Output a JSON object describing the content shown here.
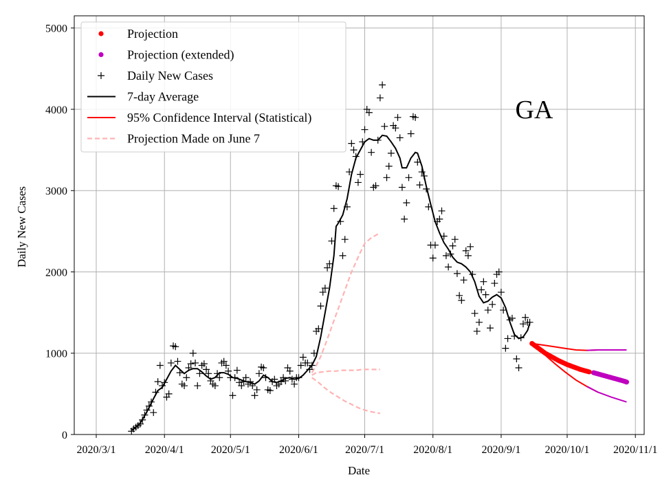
{
  "chart_data": {
    "type": "line",
    "title": "",
    "annotation": "GA",
    "xlabel": "Date",
    "ylabel": "Daily New Cases",
    "xlim_days": [
      -10,
      249
    ],
    "ylim": [
      0,
      5150
    ],
    "grid": true,
    "legend_position": "top-left",
    "x_ticks": [
      {
        "day": 0,
        "label": "2020/3/1"
      },
      {
        "day": 31,
        "label": "2020/4/1"
      },
      {
        "day": 61,
        "label": "2020/5/1"
      },
      {
        "day": 92,
        "label": "2020/6/1"
      },
      {
        "day": 122,
        "label": "2020/7/1"
      },
      {
        "day": 153,
        "label": "2020/8/1"
      },
      {
        "day": 184,
        "label": "2020/9/1"
      },
      {
        "day": 214,
        "label": "2020/10/1"
      },
      {
        "day": 245,
        "label": "2020/11/1"
      }
    ],
    "y_ticks": [
      0,
      1000,
      2000,
      3000,
      4000,
      5000
    ],
    "legend": [
      {
        "label": "Projection",
        "kind": "dot",
        "color": "#ff0000"
      },
      {
        "label": "Projection (extended)",
        "kind": "dot",
        "color": "#bf00bf"
      },
      {
        "label": "Daily New Cases",
        "kind": "plus",
        "color": "#000000"
      },
      {
        "label": "7-day Average",
        "kind": "line",
        "color": "#000000"
      },
      {
        "label": "95% Confidence Interval (Statistical)",
        "kind": "line",
        "color": "#ff0000"
      },
      {
        "label": "Projection Made on June 7",
        "kind": "dashed",
        "color": "#ffb3b3"
      }
    ],
    "daily_cases": [
      [
        16,
        40
      ],
      [
        17,
        70
      ],
      [
        18,
        90
      ],
      [
        19,
        110
      ],
      [
        20,
        130
      ],
      [
        21,
        180
      ],
      [
        22,
        240
      ],
      [
        23,
        300
      ],
      [
        24,
        350
      ],
      [
        25,
        400
      ],
      [
        26,
        270
      ],
      [
        27,
        520
      ],
      [
        28,
        650
      ],
      [
        29,
        850
      ],
      [
        30,
        600
      ],
      [
        31,
        640
      ],
      [
        32,
        460
      ],
      [
        33,
        500
      ],
      [
        34,
        880
      ],
      [
        35,
        1090
      ],
      [
        36,
        1080
      ],
      [
        37,
        900
      ],
      [
        38,
        760
      ],
      [
        39,
        620
      ],
      [
        40,
        600
      ],
      [
        41,
        700
      ],
      [
        42,
        820
      ],
      [
        43,
        870
      ],
      [
        44,
        1000
      ],
      [
        45,
        880
      ],
      [
        46,
        600
      ],
      [
        47,
        750
      ],
      [
        48,
        850
      ],
      [
        49,
        870
      ],
      [
        50,
        800
      ],
      [
        51,
        750
      ],
      [
        52,
        660
      ],
      [
        53,
        620
      ],
      [
        54,
        600
      ],
      [
        55,
        750
      ],
      [
        56,
        700
      ],
      [
        57,
        880
      ],
      [
        58,
        900
      ],
      [
        59,
        850
      ],
      [
        60,
        780
      ],
      [
        61,
        700
      ],
      [
        62,
        480
      ],
      [
        63,
        700
      ],
      [
        64,
        790
      ],
      [
        65,
        640
      ],
      [
        66,
        600
      ],
      [
        67,
        650
      ],
      [
        68,
        700
      ],
      [
        69,
        620
      ],
      [
        70,
        650
      ],
      [
        71,
        600
      ],
      [
        72,
        480
      ],
      [
        73,
        550
      ],
      [
        74,
        750
      ],
      [
        75,
        830
      ],
      [
        76,
        820
      ],
      [
        77,
        700
      ],
      [
        78,
        550
      ],
      [
        79,
        540
      ],
      [
        80,
        650
      ],
      [
        81,
        680
      ],
      [
        82,
        600
      ],
      [
        83,
        620
      ],
      [
        84,
        650
      ],
      [
        85,
        700
      ],
      [
        86,
        660
      ],
      [
        87,
        820
      ],
      [
        88,
        780
      ],
      [
        89,
        680
      ],
      [
        90,
        620
      ],
      [
        91,
        700
      ],
      [
        92,
        700
      ],
      [
        93,
        850
      ],
      [
        94,
        950
      ],
      [
        95,
        880
      ],
      [
        96,
        880
      ],
      [
        97,
        800
      ],
      [
        98,
        850
      ],
      [
        99,
        1000
      ],
      [
        100,
        1270
      ],
      [
        101,
        1300
      ],
      [
        102,
        1580
      ],
      [
        103,
        1750
      ],
      [
        104,
        1800
      ],
      [
        105,
        2050
      ],
      [
        106,
        2100
      ],
      [
        107,
        2380
      ],
      [
        108,
        2780
      ],
      [
        109,
        3060
      ],
      [
        110,
        3050
      ],
      [
        111,
        2620
      ],
      [
        112,
        2200
      ],
      [
        113,
        2400
      ],
      [
        114,
        2800
      ],
      [
        115,
        3230
      ],
      [
        116,
        3580
      ],
      [
        117,
        3500
      ],
      [
        118,
        3420
      ],
      [
        119,
        3100
      ],
      [
        120,
        3200
      ],
      [
        121,
        3600
      ],
      [
        122,
        3750
      ],
      [
        123,
        4000
      ],
      [
        124,
        3960
      ],
      [
        125,
        3470
      ],
      [
        126,
        3040
      ],
      [
        127,
        3060
      ],
      [
        128,
        3620
      ],
      [
        129,
        4140
      ],
      [
        130,
        4300
      ],
      [
        131,
        3790
      ],
      [
        132,
        3160
      ],
      [
        133,
        3300
      ],
      [
        134,
        3460
      ],
      [
        135,
        3800
      ],
      [
        136,
        3770
      ],
      [
        137,
        3900
      ],
      [
        138,
        3650
      ],
      [
        139,
        3040
      ],
      [
        140,
        2650
      ],
      [
        141,
        2850
      ],
      [
        142,
        3160
      ],
      [
        143,
        3700
      ],
      [
        144,
        3910
      ],
      [
        145,
        3900
      ],
      [
        146,
        3350
      ],
      [
        147,
        3070
      ],
      [
        148,
        3230
      ],
      [
        149,
        3180
      ],
      [
        150,
        3020
      ],
      [
        151,
        2800
      ],
      [
        152,
        2330
      ],
      [
        153,
        2170
      ],
      [
        154,
        2330
      ],
      [
        155,
        2620
      ],
      [
        156,
        2650
      ],
      [
        157,
        2750
      ],
      [
        158,
        2440
      ],
      [
        159,
        2200
      ],
      [
        160,
        2060
      ],
      [
        161,
        2220
      ],
      [
        162,
        2320
      ],
      [
        163,
        2400
      ],
      [
        164,
        1980
      ],
      [
        165,
        1710
      ],
      [
        166,
        1650
      ],
      [
        167,
        1900
      ],
      [
        168,
        2260
      ],
      [
        169,
        2200
      ],
      [
        170,
        2310
      ],
      [
        171,
        1970
      ],
      [
        172,
        1490
      ],
      [
        173,
        1270
      ],
      [
        174,
        1380
      ],
      [
        175,
        1780
      ],
      [
        176,
        1880
      ],
      [
        177,
        1720
      ],
      [
        178,
        1530
      ],
      [
        179,
        1310
      ],
      [
        180,
        1600
      ],
      [
        181,
        1860
      ],
      [
        182,
        1970
      ],
      [
        183,
        2000
      ],
      [
        184,
        1750
      ],
      [
        185,
        1530
      ],
      [
        186,
        1060
      ],
      [
        187,
        1180
      ],
      [
        188,
        1410
      ],
      [
        189,
        1430
      ],
      [
        190,
        1210
      ],
      [
        191,
        930
      ],
      [
        192,
        820
      ],
      [
        193,
        1190
      ],
      [
        194,
        1360
      ],
      [
        195,
        1440
      ],
      [
        196,
        1380
      ],
      [
        197,
        1380
      ]
    ],
    "seven_day_average": [
      [
        16,
        50
      ],
      [
        18,
        90
      ],
      [
        20,
        140
      ],
      [
        22,
        230
      ],
      [
        24,
        330
      ],
      [
        26,
        440
      ],
      [
        28,
        540
      ],
      [
        30,
        580
      ],
      [
        32,
        680
      ],
      [
        34,
        780
      ],
      [
        36,
        850
      ],
      [
        38,
        800
      ],
      [
        40,
        750
      ],
      [
        42,
        790
      ],
      [
        44,
        810
      ],
      [
        46,
        810
      ],
      [
        48,
        770
      ],
      [
        50,
        720
      ],
      [
        52,
        680
      ],
      [
        54,
        700
      ],
      [
        56,
        760
      ],
      [
        58,
        760
      ],
      [
        60,
        740
      ],
      [
        62,
        700
      ],
      [
        64,
        690
      ],
      [
        66,
        670
      ],
      [
        68,
        650
      ],
      [
        70,
        640
      ],
      [
        72,
        620
      ],
      [
        74,
        660
      ],
      [
        76,
        730
      ],
      [
        78,
        700
      ],
      [
        80,
        650
      ],
      [
        82,
        640
      ],
      [
        84,
        660
      ],
      [
        86,
        690
      ],
      [
        88,
        700
      ],
      [
        90,
        680
      ],
      [
        92,
        690
      ],
      [
        94,
        730
      ],
      [
        96,
        790
      ],
      [
        98,
        850
      ],
      [
        100,
        960
      ],
      [
        102,
        1200
      ],
      [
        104,
        1500
      ],
      [
        106,
        1800
      ],
      [
        108,
        2200
      ],
      [
        109,
        2560
      ],
      [
        110,
        2600
      ],
      [
        112,
        2700
      ],
      [
        114,
        2900
      ],
      [
        116,
        3200
      ],
      [
        118,
        3400
      ],
      [
        120,
        3500
      ],
      [
        122,
        3600
      ],
      [
        124,
        3640
      ],
      [
        126,
        3620
      ],
      [
        128,
        3620
      ],
      [
        130,
        3680
      ],
      [
        132,
        3670
      ],
      [
        134,
        3600
      ],
      [
        136,
        3520
      ],
      [
        138,
        3400
      ],
      [
        139,
        3280
      ],
      [
        141,
        3280
      ],
      [
        143,
        3400
      ],
      [
        145,
        3470
      ],
      [
        146,
        3460
      ],
      [
        148,
        3300
      ],
      [
        150,
        3050
      ],
      [
        152,
        2830
      ],
      [
        154,
        2620
      ],
      [
        156,
        2480
      ],
      [
        158,
        2360
      ],
      [
        160,
        2280
      ],
      [
        162,
        2180
      ],
      [
        164,
        2120
      ],
      [
        166,
        2100
      ],
      [
        168,
        2060
      ],
      [
        170,
        2000
      ],
      [
        172,
        1880
      ],
      [
        174,
        1700
      ],
      [
        176,
        1620
      ],
      [
        178,
        1640
      ],
      [
        180,
        1690
      ],
      [
        182,
        1720
      ],
      [
        184,
        1680
      ],
      [
        186,
        1560
      ],
      [
        188,
        1380
      ],
      [
        190,
        1230
      ],
      [
        192,
        1180
      ],
      [
        194,
        1200
      ],
      [
        196,
        1280
      ],
      [
        197,
        1370
      ]
    ],
    "projection_june7": {
      "center": [
        [
          98,
          730
        ],
        [
          100,
          760
        ],
        [
          103,
          770
        ],
        [
          106,
          780
        ],
        [
          109,
          780
        ],
        [
          112,
          790
        ],
        [
          115,
          790
        ],
        [
          118,
          790
        ],
        [
          121,
          800
        ],
        [
          124,
          800
        ],
        [
          127,
          800
        ],
        [
          129,
          800
        ]
      ],
      "upper": [
        [
          98,
          760
        ],
        [
          100,
          850
        ],
        [
          102,
          960
        ],
        [
          104,
          1100
        ],
        [
          106,
          1250
        ],
        [
          108,
          1400
        ],
        [
          110,
          1550
        ],
        [
          112,
          1700
        ],
        [
          114,
          1850
        ],
        [
          116,
          2000
        ],
        [
          118,
          2120
        ],
        [
          120,
          2240
        ],
        [
          122,
          2350
        ],
        [
          125,
          2420
        ],
        [
          129,
          2480
        ]
      ],
      "lower": [
        [
          98,
          700
        ],
        [
          101,
          640
        ],
        [
          104,
          570
        ],
        [
          107,
          510
        ],
        [
          110,
          460
        ],
        [
          113,
          410
        ],
        [
          116,
          370
        ],
        [
          119,
          330
        ],
        [
          122,
          300
        ],
        [
          125,
          280
        ],
        [
          129,
          260
        ]
      ]
    },
    "projection": [
      [
        198,
        1120
      ],
      [
        200,
        1080
      ],
      [
        202,
        1040
      ],
      [
        204,
        1000
      ],
      [
        206,
        970
      ],
      [
        208,
        940
      ],
      [
        210,
        910
      ],
      [
        212,
        885
      ],
      [
        214,
        860
      ],
      [
        216,
        840
      ],
      [
        218,
        820
      ],
      [
        220,
        800
      ],
      [
        222,
        785
      ],
      [
        224,
        770
      ]
    ],
    "projection_extended": [
      [
        226,
        760
      ],
      [
        228,
        745
      ],
      [
        230,
        730
      ],
      [
        232,
        715
      ],
      [
        234,
        700
      ],
      [
        236,
        685
      ],
      [
        238,
        670
      ],
      [
        240,
        655
      ],
      [
        241,
        645
      ]
    ],
    "ci_upper": [
      [
        198,
        1120
      ],
      [
        203,
        1100
      ],
      [
        208,
        1080
      ],
      [
        213,
        1060
      ],
      [
        218,
        1040
      ],
      [
        223,
        1035
      ],
      [
        228,
        1040
      ],
      [
        234,
        1040
      ],
      [
        241,
        1040
      ]
    ],
    "ci_lower": [
      [
        198,
        1110
      ],
      [
        203,
        1000
      ],
      [
        208,
        880
      ],
      [
        213,
        770
      ],
      [
        218,
        670
      ],
      [
        223,
        590
      ],
      [
        228,
        520
      ],
      [
        234,
        460
      ],
      [
        241,
        400
      ]
    ],
    "projection_split_day": 224
  }
}
